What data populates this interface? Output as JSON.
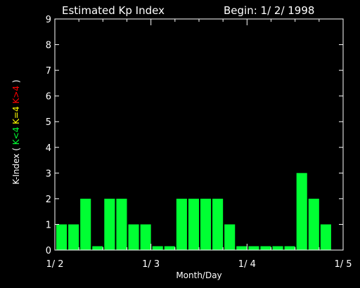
{
  "title": "Estimated Kp Index",
  "begin_label": "Begin: 1/ 2/ 1998",
  "chart_data": {
    "type": "bar",
    "xlabel": "Month/Day",
    "ylabel": {
      "prefix": "K-Index ( ",
      "low": "K<4",
      "mid": "K=4",
      "high": "K>4",
      "suffix": " )"
    },
    "ylim": [
      0,
      9
    ],
    "yticks": [
      0,
      1,
      2,
      3,
      4,
      5,
      6,
      7,
      8,
      9
    ],
    "xticks": [
      "1/ 2",
      "1/ 3",
      "1/ 4",
      "1/ 5"
    ],
    "values": [
      1,
      1,
      2,
      0.15,
      2,
      2,
      1,
      1,
      0.15,
      0.15,
      2,
      2,
      2,
      2,
      1,
      0.15,
      0.15,
      0.15,
      0.15,
      0.15,
      3,
      2,
      1
    ],
    "bar_colors": {
      "low": "#00ff33",
      "mid": "#ffff00",
      "high": "#ff0000"
    },
    "grid": false
  }
}
